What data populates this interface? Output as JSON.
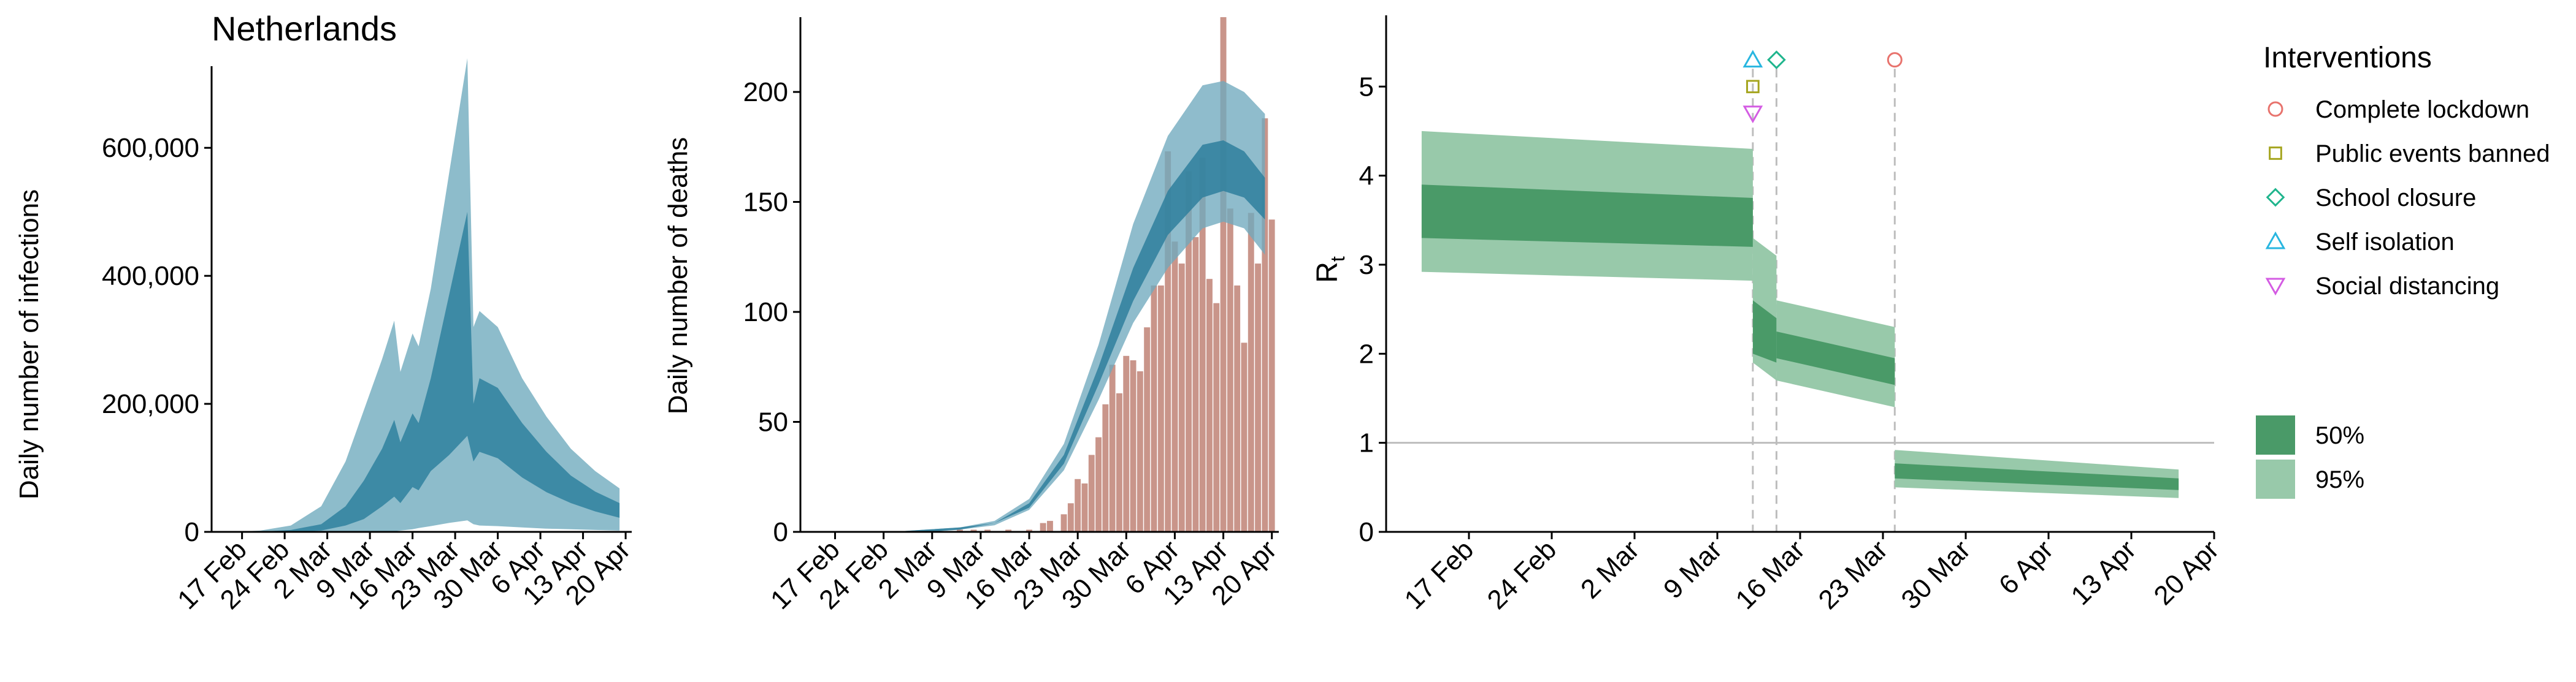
{
  "country": "Netherlands",
  "colors": {
    "infections_outer": "#8dbccb",
    "infections_inner": "#3d8aa5",
    "deaths_band_outer": "#6fa9be",
    "deaths_band_inner": "#2f7f9c",
    "bars": "#c9958a",
    "rt_outer": "#98c9aa",
    "rt_inner": "#4a9a68",
    "gridline": "#bdbdbd",
    "marker_lockdown": "#e8736d",
    "marker_events": "#a5a51f",
    "marker_school": "#1fb58d",
    "marker_isolation": "#28b6e0",
    "marker_distancing": "#d45ce3"
  },
  "chart_data": [
    {
      "id": "infections",
      "type": "area",
      "title": "Netherlands",
      "ylabel": "Daily number of infections",
      "xlabel": "",
      "x_ticks": [
        "17 Feb",
        "24 Feb",
        "2 Mar",
        "9 Mar",
        "16 Mar",
        "23 Mar",
        "30 Mar",
        "6 Apr",
        "13 Apr",
        "20 Apr"
      ],
      "y_ticks": [
        "0",
        "200,000",
        "400,000",
        "600,000"
      ],
      "xlim": [
        "2020-02-12",
        "2020-04-21"
      ],
      "ylim": [
        0,
        740000
      ],
      "series": [
        {
          "band": "95%",
          "x": [
            "2020-02-15",
            "2020-02-20",
            "2020-02-25",
            "2020-03-01",
            "2020-03-05",
            "2020-03-08",
            "2020-03-11",
            "2020-03-13",
            "2020-03-14",
            "2020-03-16",
            "2020-03-17",
            "2020-03-19",
            "2020-03-22",
            "2020-03-25",
            "2020-03-26",
            "2020-03-27",
            "2020-03-30",
            "2020-04-03",
            "2020-04-07",
            "2020-04-11",
            "2020-04-15",
            "2020-04-19"
          ],
          "upper": [
            0,
            2000,
            10000,
            40000,
            110000,
            190000,
            270000,
            330000,
            250000,
            310000,
            290000,
            380000,
            560000,
            740000,
            320000,
            345000,
            320000,
            240000,
            180000,
            130000,
            95000,
            68000
          ],
          "lower": [
            0,
            0,
            0,
            0,
            0,
            0,
            500,
            1000,
            2000,
            4000,
            6000,
            9000,
            14000,
            18000,
            12000,
            10000,
            9000,
            7000,
            5000,
            4000,
            3000,
            2000
          ]
        },
        {
          "band": "50%",
          "x": [
            "2020-02-15",
            "2020-02-20",
            "2020-02-25",
            "2020-03-01",
            "2020-03-05",
            "2020-03-08",
            "2020-03-11",
            "2020-03-13",
            "2020-03-14",
            "2020-03-16",
            "2020-03-17",
            "2020-03-19",
            "2020-03-22",
            "2020-03-25",
            "2020-03-26",
            "2020-03-27",
            "2020-03-30",
            "2020-04-03",
            "2020-04-07",
            "2020-04-11",
            "2020-04-15",
            "2020-04-19"
          ],
          "upper": [
            0,
            500,
            3000,
            12000,
            40000,
            80000,
            130000,
            175000,
            140000,
            185000,
            170000,
            240000,
            370000,
            500000,
            200000,
            240000,
            225000,
            170000,
            125000,
            88000,
            63000,
            45000
          ],
          "lower": [
            0,
            0,
            0,
            2000,
            10000,
            20000,
            40000,
            55000,
            45000,
            70000,
            65000,
            95000,
            120000,
            150000,
            110000,
            125000,
            115000,
            85000,
            62000,
            45000,
            32000,
            22000
          ]
        }
      ]
    },
    {
      "id": "deaths",
      "type": "bar",
      "title": "",
      "ylabel": "Daily number of deaths",
      "xlabel": "",
      "x_ticks": [
        "17 Feb",
        "24 Feb",
        "2 Mar",
        "9 Mar",
        "16 Mar",
        "23 Mar",
        "30 Mar",
        "6 Apr",
        "13 Apr",
        "20 Apr"
      ],
      "y_ticks": [
        "0",
        "50",
        "100",
        "150",
        "200"
      ],
      "xlim": [
        "2020-02-12",
        "2020-04-21"
      ],
      "ylim": [
        0,
        234
      ],
      "bar_dates_start": "2020-03-06",
      "bar_values": [
        1,
        0,
        1,
        0,
        1,
        0,
        0,
        1,
        0,
        0,
        1,
        0,
        4,
        5,
        0,
        8,
        13,
        24,
        22,
        35,
        43,
        58,
        76,
        63,
        80,
        78,
        73,
        93,
        112,
        112,
        173,
        132,
        122,
        164,
        134,
        170,
        115,
        104,
        234,
        147,
        112,
        86,
        145,
        122,
        188,
        142
      ],
      "bands": {
        "x": [
          "2020-02-15",
          "2020-02-25",
          "2020-03-01",
          "2020-03-06",
          "2020-03-11",
          "2020-03-16",
          "2020-03-21",
          "2020-03-26",
          "2020-03-31",
          "2020-04-05",
          "2020-04-10",
          "2020-04-13",
          "2020-04-16",
          "2020-04-19"
        ],
        "outer_upper": [
          0,
          0,
          1,
          2,
          5,
          15,
          40,
          85,
          140,
          180,
          203,
          205,
          200,
          190
        ],
        "outer_lower": [
          0,
          0,
          0,
          1,
          3,
          10,
          28,
          60,
          95,
          120,
          138,
          141,
          138,
          126
        ],
        "inner_upper": [
          0,
          0,
          1,
          2,
          4,
          13,
          35,
          75,
          120,
          155,
          176,
          178,
          173,
          161
        ],
        "inner_lower": [
          0,
          0,
          0,
          1,
          4,
          11,
          31,
          67,
          105,
          135,
          152,
          155,
          152,
          142
        ]
      }
    },
    {
      "id": "rt",
      "type": "area",
      "title": "",
      "ylabel": "R",
      "ylabel_subscript": "t",
      "xlabel": "",
      "x_ticks": [
        "17 Feb",
        "24 Feb",
        "2 Mar",
        "9 Mar",
        "16 Mar",
        "23 Mar",
        "30 Mar",
        "6 Apr",
        "13 Apr",
        "20 Apr"
      ],
      "y_ticks": [
        "0",
        "1",
        "2",
        "3",
        "4",
        "5"
      ],
      "xlim": [
        "2020-02-10",
        "2020-04-20"
      ],
      "ylim": [
        0,
        5.8
      ],
      "reference_line": 1,
      "segments": [
        {
          "x": [
            "2020-02-13",
            "2020-03-12"
          ],
          "outer_upper": [
            4.5,
            4.3
          ],
          "outer_lower": [
            2.92,
            2.82
          ],
          "inner_upper": [
            3.9,
            3.75
          ],
          "inner_lower": [
            3.3,
            3.2
          ]
        },
        {
          "x": [
            "2020-03-12",
            "2020-03-14"
          ],
          "outer_upper": [
            3.3,
            3.1
          ],
          "outer_lower": [
            1.9,
            1.7
          ],
          "inner_upper": [
            2.6,
            2.4
          ],
          "inner_lower": [
            2.0,
            1.9
          ]
        },
        {
          "x": [
            "2020-03-14",
            "2020-03-24"
          ],
          "outer_upper": [
            2.6,
            2.3
          ],
          "outer_lower": [
            1.7,
            1.4
          ],
          "inner_upper": [
            2.25,
            1.95
          ],
          "inner_lower": [
            1.95,
            1.65
          ]
        },
        {
          "x": [
            "2020-03-24",
            "2020-04-17"
          ],
          "outer_upper": [
            0.92,
            0.7
          ],
          "outer_lower": [
            0.5,
            0.38
          ],
          "inner_upper": [
            0.77,
            0.6
          ],
          "inner_lower": [
            0.6,
            0.47
          ]
        }
      ],
      "interventions": [
        {
          "name": "Self isolation",
          "date": "2020-03-12",
          "level": 5.3,
          "marker": "triangle-up",
          "color_key": "marker_isolation"
        },
        {
          "name": "Public events banned",
          "date": "2020-03-12",
          "level": 5.0,
          "marker": "square",
          "color_key": "marker_events"
        },
        {
          "name": "Social distancing",
          "date": "2020-03-12",
          "level": 4.7,
          "marker": "triangle-down",
          "color_key": "marker_distancing"
        },
        {
          "name": "School closure",
          "date": "2020-03-14",
          "level": 5.3,
          "marker": "diamond",
          "color_key": "marker_school"
        },
        {
          "name": "Complete lockdown",
          "date": "2020-03-24",
          "level": 5.3,
          "marker": "circle",
          "color_key": "marker_lockdown"
        }
      ]
    }
  ],
  "legend": {
    "interventions_title": "Interventions",
    "interventions": [
      {
        "label": "Complete lockdown",
        "marker": "circle",
        "color_key": "marker_lockdown"
      },
      {
        "label": "Public events banned",
        "marker": "square",
        "color_key": "marker_events"
      },
      {
        "label": "School closure",
        "marker": "diamond",
        "color_key": "marker_school"
      },
      {
        "label": "Self isolation",
        "marker": "triangle-up",
        "color_key": "marker_isolation"
      },
      {
        "label": "Social distancing",
        "marker": "triangle-down",
        "color_key": "marker_distancing"
      }
    ],
    "bands": [
      {
        "label": "50%",
        "color_key": "rt_inner"
      },
      {
        "label": "95%",
        "color_key": "rt_outer"
      }
    ]
  }
}
